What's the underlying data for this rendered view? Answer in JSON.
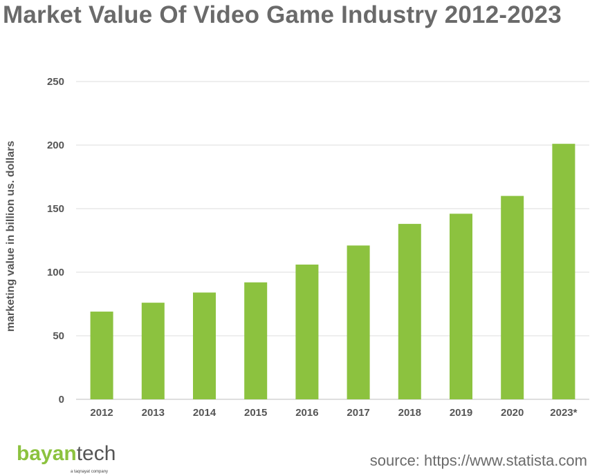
{
  "header": {
    "title": "Market Value Of Video Game Industry 2012-2023"
  },
  "chart_data": {
    "type": "bar",
    "title": "Market Value Of Video Game Industry 2012-2023",
    "xlabel": "",
    "ylabel": "marketing value in billion us. dollars",
    "categories": [
      "2012",
      "2013",
      "2014",
      "2015",
      "2016",
      "2017",
      "2018",
      "2019",
      "2020",
      "2023*"
    ],
    "values": [
      69,
      76,
      84,
      92,
      106,
      121,
      138,
      146,
      160,
      201
    ],
    "ylim": [
      0,
      250
    ],
    "yticks": [
      0,
      50,
      100,
      150,
      200,
      250
    ],
    "grid": true,
    "legend": "none",
    "bar_color": "#8cc23f",
    "grid_color": "#dcdcdc"
  },
  "footer": {
    "logo_brand": "bayan",
    "logo_rest": "tech",
    "logo_tagline": "a taqnayat company",
    "logo_brand_color": "#8cc23f",
    "logo_rest_color": "#555555",
    "source": "source: https://www.statista.com"
  }
}
